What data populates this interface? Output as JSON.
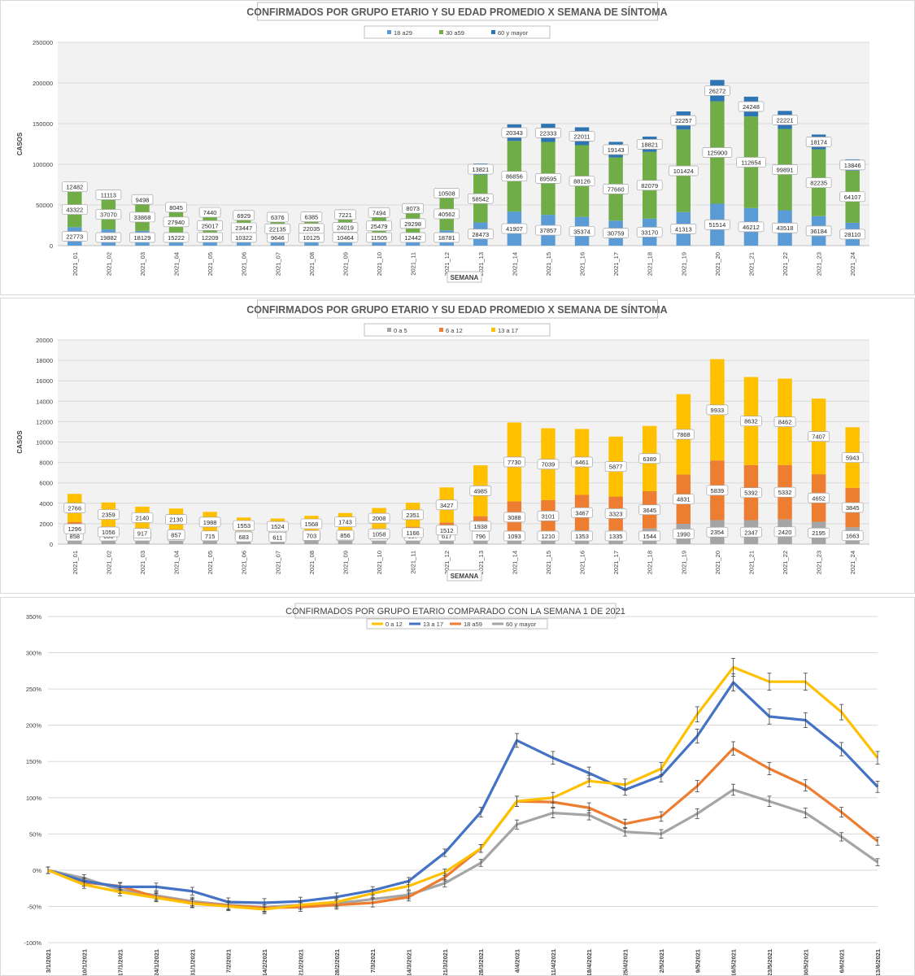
{
  "colors": {
    "c18a29": "#5b9bd5",
    "c30a59": "#70ad47",
    "c60": "#2e75b6",
    "c0a5": "#a5a5a5",
    "c6a12": "#ed7d31",
    "c13a17": "#ffc000",
    "line0a12": "#ffc000",
    "line13a17": "#4472c4",
    "line18a59": "#ed7d31",
    "line60": "#a5a5a5"
  },
  "chart_data": [
    {
      "type": "bar",
      "stacked": true,
      "title": "CONFIRMADOS POR GRUPO ETARIO Y SU EDAD PROMEDIO X SEMANA DE SÍNTOMA",
      "xlabel": "SEMANA",
      "ylabel": "CASOS",
      "ylim": [
        0,
        250000
      ],
      "yticks": [
        "0",
        "50000",
        "100000",
        "150000",
        "200000",
        "250000"
      ],
      "grid": true,
      "legend_position": "top",
      "categories": [
        "2021_01",
        "2021_02",
        "2021_03",
        "2021_04",
        "2021_05",
        "2021_06",
        "2021_07",
        "2021_08",
        "2021_09",
        "2021_10",
        "2021_11",
        "2021_12",
        "2021_13",
        "2021_14",
        "2021_15",
        "2021_16",
        "2021_17",
        "2021_18",
        "2021_19",
        "2021_20",
        "2021_21",
        "2021_22",
        "2021_23",
        "2021_24"
      ],
      "series": [
        {
          "name": "18 a29",
          "values": [
            22773,
            19882,
            18129,
            15222,
            12209,
            10322,
            9646,
            10125,
            10464,
            11505,
            12442,
            18781,
            28473,
            41907,
            37857,
            35374,
            30759,
            33170,
            41313,
            51514,
            46212,
            43518,
            36184,
            28110
          ]
        },
        {
          "name": "30 a59",
          "values": [
            43322,
            37070,
            33868,
            27940,
            25017,
            23447,
            22135,
            22035,
            24019,
            25479,
            29298,
            40562,
            58542,
            86856,
            89595,
            88126,
            77660,
            82079,
            101424,
            125900,
            112654,
            99891,
            82235,
            64107
          ]
        },
        {
          "name": "60 y mayor",
          "values": [
            12482,
            11113,
            9498,
            8045,
            7440,
            6929,
            6376,
            6385,
            7221,
            7494,
            8073,
            10508,
            13821,
            20343,
            22333,
            22011,
            19143,
            18821,
            22257,
            26272,
            24248,
            22221,
            18174,
            13846
          ]
        }
      ]
    },
    {
      "type": "bar",
      "stacked": true,
      "title": "CONFIRMADOS POR GRUPO ETARIO Y SU EDAD PROMEDIO X SEMANA DE SÍNTOMA",
      "xlabel": "SEMANA",
      "ylabel": "CASOS",
      "ylim": [
        0,
        20000
      ],
      "yticks": [
        "0",
        "2000",
        "4000",
        "6000",
        "8000",
        "10000",
        "12000",
        "14000",
        "16000",
        "18000",
        "20000"
      ],
      "grid": true,
      "legend_position": "top",
      "categories": [
        "2021_01",
        "2021_02",
        "2021_03",
        "2021_04",
        "2021_05",
        "2021_06",
        "2021_07",
        "2021_08",
        "2021_09",
        "2021_10",
        "2021_11",
        "2021_12",
        "2021_13",
        "2021_14",
        "2021_15",
        "2021_16",
        "2021_17",
        "2021_18",
        "2021_19",
        "2021_20",
        "2021_21",
        "2021_22",
        "2021_23",
        "2021_24"
      ],
      "series": [
        {
          "name": "0 a 5",
          "values": [
            858,
            668,
            607,
            500,
            455,
            370,
            371,
            500,
            448,
            476,
            537,
            617,
            796,
            1093,
            1210,
            1353,
            1335,
            1544,
            1990,
            2354,
            2347,
            2420,
            2195,
            1663
          ]
        },
        {
          "name": "6 a 12",
          "values": [
            1296,
            1056,
            917,
            857,
            715,
            683,
            611,
            703,
            856,
            1058,
            1166,
            1512,
            1938,
            3088,
            3101,
            3467,
            3323,
            3645,
            4831,
            5839,
            5392,
            5332,
            4652,
            3845
          ]
        },
        {
          "name": "13 a 17",
          "values": [
            2766,
            2359,
            2140,
            2130,
            1988,
            1553,
            1524,
            1568,
            1743,
            2008,
            2351,
            3427,
            4985,
            7730,
            7039,
            6461,
            5877,
            6389,
            7868,
            9933,
            8632,
            8462,
            7407,
            5943
          ]
        }
      ]
    },
    {
      "type": "line",
      "title": "CONFIRMADOS POR GRUPO ETARIO COMPARADO CON LA SEMANA 1 DE 2021",
      "ylim": [
        -100,
        350
      ],
      "yticks": [
        "-100%",
        "-50%",
        "0%",
        "50%",
        "100%",
        "150%",
        "200%",
        "250%",
        "300%",
        "350%"
      ],
      "grid": true,
      "legend_position": "top",
      "x": [
        "3/1/2021",
        "10/1/2021",
        "17/1/2021",
        "24/1/2021",
        "31/1/2021",
        "7/2/2021",
        "14/2/2021",
        "21/2/2021",
        "28/2/2021",
        "7/3/2021",
        "14/3/2021",
        "21/3/2021",
        "28/3/2021",
        "4/4/2021",
        "11/4/2021",
        "18/4/2021",
        "25/4/2021",
        "2/5/2021",
        "9/5/2021",
        "16/5/2021",
        "23/5/2021",
        "30/5/2021",
        "6/6/2021",
        "13/6/2021"
      ],
      "series": [
        {
          "name": "0 a 12",
          "values": [
            0,
            -20,
            -30,
            -38,
            -46,
            -50,
            -54,
            -48,
            -44,
            -32,
            -22,
            -3,
            30,
            95,
            100,
            123,
            118,
            140,
            215,
            280,
            260,
            260,
            218,
            155
          ]
        },
        {
          "name": "13 a 17",
          "values": [
            0,
            -15,
            -23,
            -23,
            -29,
            -44,
            -45,
            -43,
            -37,
            -28,
            -15,
            24,
            80,
            179,
            155,
            134,
            111,
            130,
            185,
            259,
            212,
            207,
            167,
            115
          ]
        },
        {
          "name": "18 a59",
          "values": [
            0,
            -17,
            -22,
            -37,
            -45,
            -49,
            -52,
            -51,
            -48,
            -45,
            -37,
            -10,
            30,
            95,
            94,
            86,
            64,
            74,
            116,
            168,
            140,
            117,
            80,
            40
          ]
        },
        {
          "name": "60 y mayor",
          "values": [
            0,
            -11,
            -27,
            -35,
            -43,
            -48,
            -51,
            -48,
            -46,
            -40,
            -34,
            -18,
            10,
            63,
            79,
            76,
            53,
            50,
            78,
            111,
            95,
            79,
            46,
            11
          ]
        }
      ]
    }
  ]
}
